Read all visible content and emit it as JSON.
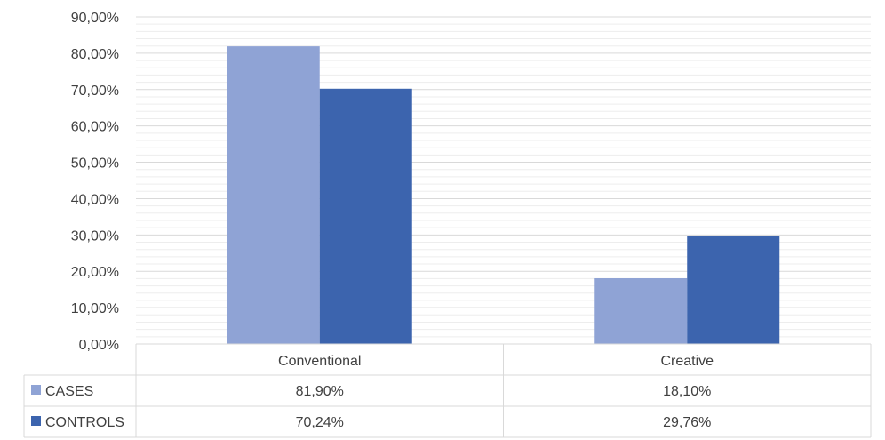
{
  "chart_data": {
    "type": "bar",
    "categories": [
      "Conventional",
      "Creative"
    ],
    "series": [
      {
        "name": "CASES",
        "values": [
          81.9,
          18.1
        ],
        "labels": [
          "81,90%",
          "18,10%"
        ],
        "color": "#8FA3D5"
      },
      {
        "name": "CONTROLS",
        "values": [
          70.24,
          29.76
        ],
        "labels": [
          "70,24%",
          "29,76%"
        ],
        "color": "#3C64AE"
      }
    ],
    "ylim": [
      0,
      90
    ],
    "yticks": [
      "0,00%",
      "10,00%",
      "20,00%",
      "30,00%",
      "40,00%",
      "50,00%",
      "60,00%",
      "70,00%",
      "80,00%",
      "90,00%"
    ],
    "grid": true,
    "data_table": true,
    "gridline_color": "#D9D9D9",
    "minor_gridline_color": "#EDEDED"
  }
}
